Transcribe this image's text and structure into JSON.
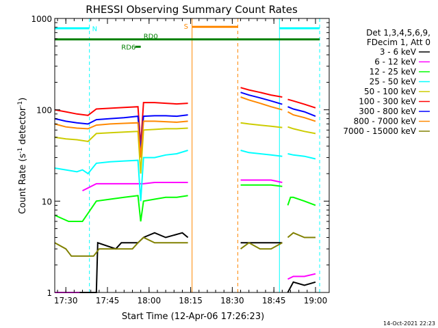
{
  "chart_data": {
    "type": "line",
    "title": "RHESSI Observing Summary Count Rates",
    "xlabel": "Start Time (12-Apr-06 17:26:23)",
    "ylabel_main": "Count Rate (s",
    "ylabel_sup1": "-1",
    "ylabel_mid": " detector",
    "ylabel_sup2": "-1",
    "ylabel_end": ")",
    "yscale": "log",
    "ylim": [
      1,
      1000
    ],
    "xlim_min": [
      0,
      94
    ],
    "xticks": [
      {
        "min": 4,
        "label": "17:30"
      },
      {
        "min": 19,
        "label": "17:45"
      },
      {
        "min": 34,
        "label": "18:00"
      },
      {
        "min": 49,
        "label": "18:15"
      },
      {
        "min": 64,
        "label": "18:30"
      },
      {
        "min": 79,
        "label": "18:45"
      },
      {
        "min": 94,
        "label": "19:00"
      }
    ],
    "yticks": [
      {
        "v": 1,
        "label": "1"
      },
      {
        "v": 10,
        "label": "10"
      },
      {
        "v": 100,
        "label": "100"
      },
      {
        "v": 1000,
        "label": "1000"
      }
    ],
    "legend_header": [
      "Det 1,3,4,5,6,9,",
      "FDecim 1, Att 0"
    ],
    "series": [
      {
        "name": "3 - 6 keV",
        "color": "#000000",
        "segments": [
          {
            "x": [
              0,
              15,
              15.5,
              22,
              24,
              30,
              32,
              36,
              40,
              46,
              48
            ],
            "y": [
              1,
              1,
              3.5,
              3,
              3.5,
              3.5,
              4,
              4.5,
              4,
              4.5,
              4
            ]
          },
          {
            "x": [
              67,
              70,
              74,
              78,
              82
            ],
            "y": [
              3.5,
              3.5,
              3.5,
              3.5,
              3.5
            ]
          },
          {
            "x": [
              84,
              86,
              90,
              94
            ],
            "y": [
              1,
              1.3,
              1.2,
              1.3
            ]
          }
        ]
      },
      {
        "name": "6 - 12 keV",
        "color": "#ff00ff",
        "segments": [
          {
            "x": [
              0,
              5,
              6,
              9
            ],
            "y": [
              1,
              1,
              1,
              1
            ]
          },
          {
            "x": [
              10,
              15,
              20,
              25,
              30,
              32,
              36,
              40,
              44,
              48
            ],
            "y": [
              13,
              15.5,
              15.5,
              15.5,
              15.5,
              15.5,
              16,
              16,
              16,
              16
            ]
          },
          {
            "x": [
              67,
              70,
              74,
              78,
              82
            ],
            "y": [
              17,
              17,
              17,
              17,
              16
            ]
          },
          {
            "x": [
              84,
              86,
              90,
              94
            ],
            "y": [
              1.4,
              1.5,
              1.5,
              1.6
            ]
          }
        ]
      },
      {
        "name": "12 - 25 keV",
        "color": "#00ff00",
        "segments": [
          {
            "x": [
              0,
              5,
              8,
              10,
              15,
              20,
              25,
              30,
              31,
              32,
              36,
              40,
              44,
              48
            ],
            "y": [
              7,
              6,
              6,
              6,
              10,
              10.5,
              11,
              11.5,
              6,
              10,
              10.5,
              11,
              11,
              11.5
            ]
          },
          {
            "x": [
              67,
              70,
              74,
              78,
              82
            ],
            "y": [
              15,
              15,
              15,
              15,
              14.5
            ]
          },
          {
            "x": [
              84,
              85,
              86,
              90,
              94
            ],
            "y": [
              9,
              11,
              11,
              10,
              9
            ]
          }
        ]
      },
      {
        "name": "25 - 50 keV",
        "color": "#00ffff",
        "segments": [
          {
            "x": [
              0,
              4,
              8,
              10,
              12,
              15,
              20,
              25,
              30,
              31,
              32,
              36,
              40,
              44,
              48
            ],
            "y": [
              23,
              22,
              21,
              22,
              20,
              26,
              27,
              27.5,
              28,
              10,
              30,
              30,
              32,
              33,
              36
            ]
          },
          {
            "x": [
              67,
              70,
              74,
              78,
              82
            ],
            "y": [
              36,
              34,
              33,
              32,
              31
            ]
          },
          {
            "x": [
              84,
              86,
              90,
              94
            ],
            "y": [
              33,
              32,
              31,
              29
            ]
          }
        ]
      },
      {
        "name": "50 - 100 keV",
        "color": "#cccc00",
        "segments": [
          {
            "x": [
              0,
              4,
              8,
              12,
              15,
              20,
              25,
              30,
              31,
              32,
              36,
              40,
              44,
              48
            ],
            "y": [
              50,
              48,
              47,
              45,
              55,
              56,
              57,
              58,
              20,
              60,
              61,
              62,
              62,
              63
            ]
          },
          {
            "x": [
              67,
              70,
              74,
              78,
              82
            ],
            "y": [
              72,
              70,
              68,
              66,
              64
            ]
          },
          {
            "x": [
              84,
              86,
              90,
              94
            ],
            "y": [
              65,
              62,
              58,
              55
            ]
          }
        ]
      },
      {
        "name": "100 - 300 keV",
        "color": "#ff0000",
        "segments": [
          {
            "x": [
              0,
              4,
              8,
              12,
              15,
              20,
              25,
              30,
              31,
              32,
              36,
              40,
              44,
              48
            ],
            "y": [
              100,
              95,
              90,
              87,
              102,
              104,
              106,
              108,
              40,
              120,
              120,
              118,
              116,
              118
            ]
          },
          {
            "x": [
              67,
              70,
              74,
              78,
              82
            ],
            "y": [
              175,
              165,
              155,
              145,
              138
            ]
          },
          {
            "x": [
              84,
              86,
              90,
              94
            ],
            "y": [
              130,
              125,
              115,
              105
            ]
          }
        ]
      },
      {
        "name": "300 - 800 keV",
        "color": "#0000ff",
        "segments": [
          {
            "x": [
              0,
              4,
              8,
              12,
              15,
              20,
              25,
              30,
              31,
              32,
              36,
              40,
              44,
              48
            ],
            "y": [
              80,
              75,
              72,
              70,
              78,
              80,
              82,
              85,
              35,
              85,
              86,
              86,
              85,
              88
            ]
          },
          {
            "x": [
              67,
              70,
              74,
              78,
              82
            ],
            "y": [
              155,
              145,
              135,
              125,
              115
            ]
          },
          {
            "x": [
              84,
              86,
              90,
              94
            ],
            "y": [
              108,
              102,
              95,
              85
            ]
          }
        ]
      },
      {
        "name": "800 - 7000 keV",
        "color": "#ff8800",
        "segments": [
          {
            "x": [
              0,
              4,
              8,
              12,
              15,
              20,
              25,
              30,
              31,
              32,
              36,
              40,
              44,
              48
            ],
            "y": [
              70,
              65,
              63,
              62,
              68,
              70,
              71,
              72,
              30,
              75,
              75,
              74,
              73,
              75
            ]
          },
          {
            "x": [
              67,
              70,
              74,
              78,
              82
            ],
            "y": [
              138,
              128,
              118,
              108,
              100
            ]
          },
          {
            "x": [
              84,
              86,
              90,
              94
            ],
            "y": [
              95,
              88,
              82,
              75
            ]
          }
        ]
      },
      {
        "name": "7000 - 15000 keV",
        "color": "#808000",
        "segments": [
          {
            "x": [
              0,
              4,
              6,
              10,
              14,
              16,
              20,
              24,
              28,
              30,
              32,
              36,
              40,
              44,
              48
            ],
            "y": [
              3.5,
              3,
              2.5,
              2.5,
              2.5,
              3,
              3,
              3,
              3,
              3.5,
              4,
              3.5,
              3.5,
              3.5,
              3.5
            ]
          },
          {
            "x": [
              67,
              70,
              74,
              78,
              82
            ],
            "y": [
              3,
              3.5,
              3,
              3,
              3.5
            ]
          },
          {
            "x": [
              84,
              86,
              90,
              94
            ],
            "y": [
              4,
              4.5,
              4,
              4
            ]
          }
        ]
      }
    ],
    "vlines": [
      {
        "min": 0,
        "color": "#00ffff",
        "dash": false
      },
      {
        "min": 12.5,
        "color": "#00ffff",
        "dash": true
      },
      {
        "min": 49.5,
        "color": "#ff8800",
        "dash": false
      },
      {
        "min": 66,
        "color": "#ff8800",
        "dash": true
      },
      {
        "min": 81,
        "color": "#00ffff",
        "dash": false
      },
      {
        "min": 95.5,
        "color": "#00ffff",
        "dash": true
      }
    ],
    "flags": [
      {
        "label": "N",
        "color": "#00ffff",
        "bars": [
          [
            0,
            12.5
          ],
          [
            81,
            95.5
          ]
        ],
        "level": 780
      },
      {
        "label": "RD0",
        "color": "#008000",
        "bars": [
          [
            0,
            95.5
          ]
        ],
        "level": 590
      },
      {
        "label": "RD6",
        "color": "#008000",
        "bars": [
          [
            29,
            31
          ]
        ],
        "level": 490
      },
      {
        "label": "S",
        "color": "#ff8800",
        "bars": [
          [
            49.5,
            66
          ]
        ],
        "level": 810
      }
    ],
    "timestamp": "14-Oct-2021 22:23"
  }
}
